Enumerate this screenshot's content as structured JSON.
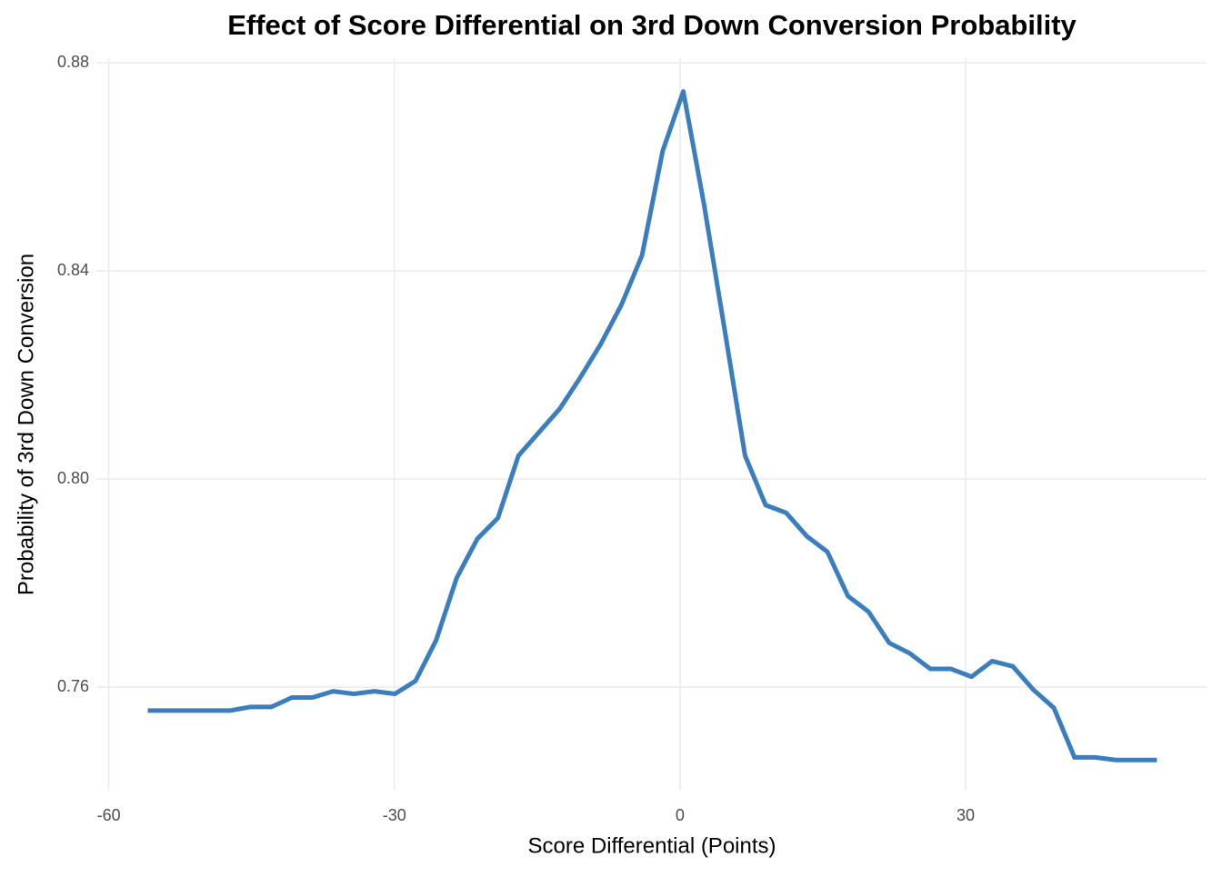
{
  "chart_data": {
    "type": "line",
    "title": "Effect of Score Differential on 3rd Down Conversion Probability",
    "x_label": "Score Differential (Points)",
    "y_label": "Probability of 3rd Down Conversion",
    "x": [
      -55.9,
      -53.74,
      -51.57,
      -49.41,
      -47.25,
      -45.09,
      -42.92,
      -40.76,
      -38.6,
      -36.43,
      -34.27,
      -32.11,
      -29.94,
      -27.78,
      -25.62,
      -23.46,
      -21.29,
      -19.13,
      -16.97,
      -14.8,
      -12.64,
      -10.48,
      -8.31,
      -6.15,
      -3.99,
      -1.83,
      0.34,
      2.5,
      4.66,
      6.83,
      8.99,
      11.15,
      13.32,
      15.48,
      17.64,
      19.8,
      21.97,
      24.13,
      26.29,
      28.46,
      30.62,
      32.78,
      34.95,
      37.11,
      39.27,
      41.43,
      43.6,
      45.76,
      47.92,
      50.09
    ],
    "series": [
      {
        "name": "Probability",
        "color": "#3a7ebf",
        "values": [
          0.7555,
          0.7555,
          0.7555,
          0.7555,
          0.7555,
          0.7562,
          0.7562,
          0.758,
          0.758,
          0.7592,
          0.7587,
          0.7592,
          0.7587,
          0.7612,
          0.769,
          0.781,
          0.7885,
          0.7925,
          0.8045,
          0.809,
          0.8135,
          0.8195,
          0.826,
          0.8335,
          0.843,
          0.863,
          0.8745,
          0.853,
          0.829,
          0.8045,
          0.795,
          0.7935,
          0.789,
          0.786,
          0.7775,
          0.7745,
          0.7685,
          0.7665,
          0.7635,
          0.7635,
          0.762,
          0.765,
          0.764,
          0.7595,
          0.756,
          0.7465,
          0.7465,
          0.746,
          0.746,
          0.746
        ]
      }
    ],
    "xlim": [
      -61.3,
      55.3
    ],
    "ylim": [
      0.7401,
      0.8809
    ],
    "xticks": [
      -60,
      -30,
      0,
      30
    ],
    "yticks": [
      0.76,
      {
        "value": 0.8,
        "label": "0.80"
      },
      0.84,
      0.88
    ],
    "grid": true
  }
}
